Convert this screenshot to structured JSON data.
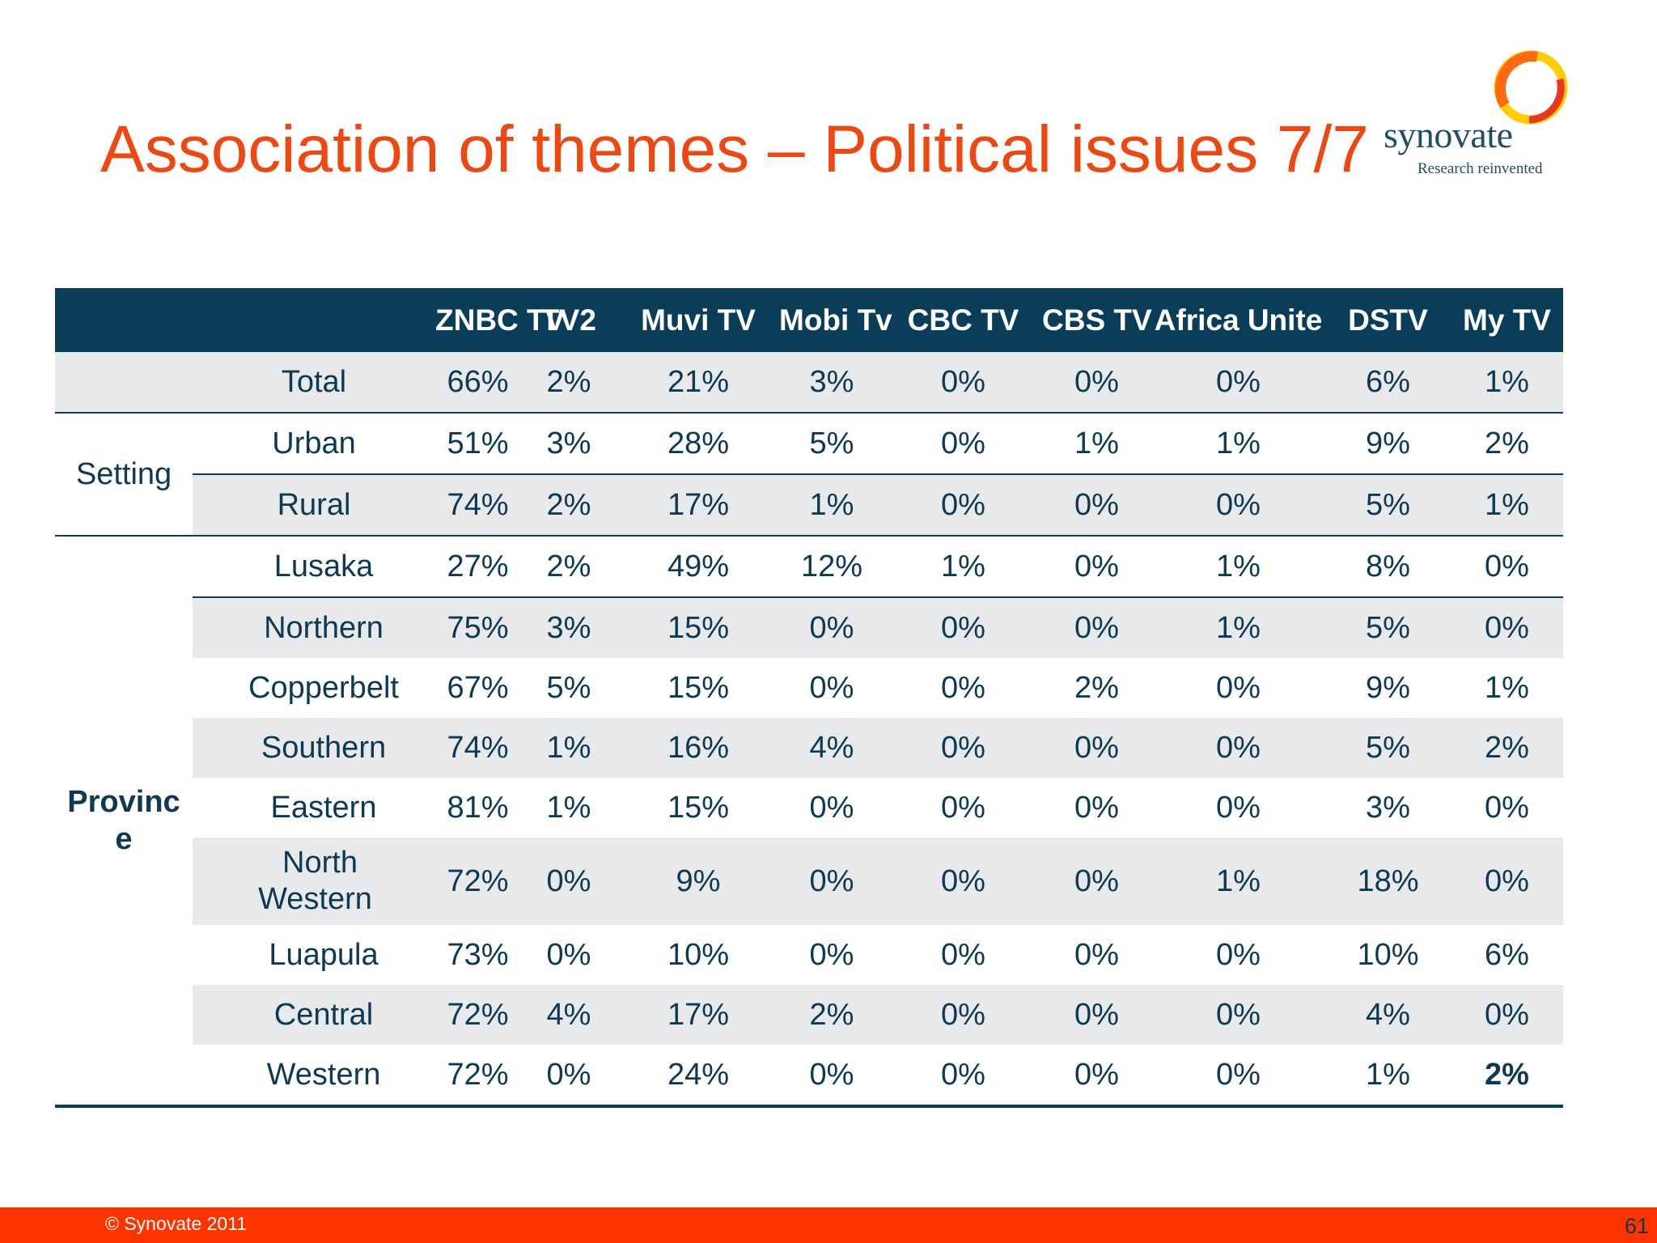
{
  "title": "Association of themes – Political issues 7/7",
  "logo": {
    "word": "synovate",
    "tagline": "Research reinvented"
  },
  "table": {
    "headers": [
      "ZNBC TV",
      "TV2",
      "Muvi TV",
      "Mobi Tv",
      "CBC TV",
      "CBS TV",
      "Africa Unite",
      "DSTV",
      "My TV"
    ],
    "groups": {
      "setting": "Setting",
      "province_line1": "Provinc",
      "province_line2": "e"
    },
    "rows": [
      {
        "label": "Total",
        "values": [
          "66%",
          "2%",
          "21%",
          "3%",
          "0%",
          "0%",
          "0%",
          "6%",
          "1%"
        ]
      },
      {
        "label": "Urban",
        "values": [
          "51%",
          "3%",
          "28%",
          "5%",
          "0%",
          "1%",
          "1%",
          "9%",
          "2%"
        ]
      },
      {
        "label": "Rural",
        "values": [
          "74%",
          "2%",
          "17%",
          "1%",
          "0%",
          "0%",
          "0%",
          "5%",
          "1%"
        ]
      },
      {
        "label": "Lusaka",
        "values": [
          "27%",
          "2%",
          "49%",
          "12%",
          "1%",
          "0%",
          "1%",
          "8%",
          "0%"
        ]
      },
      {
        "label": "Northern",
        "values": [
          "75%",
          "3%",
          "15%",
          "0%",
          "0%",
          "0%",
          "1%",
          "5%",
          "0%"
        ]
      },
      {
        "label": "Copperbelt",
        "values": [
          "67%",
          "5%",
          "15%",
          "0%",
          "0%",
          "2%",
          "0%",
          "9%",
          "1%"
        ]
      },
      {
        "label": "Southern",
        "values": [
          "74%",
          "1%",
          "16%",
          "4%",
          "0%",
          "0%",
          "0%",
          "5%",
          "2%"
        ]
      },
      {
        "label": "Eastern",
        "values": [
          "81%",
          "1%",
          "15%",
          "0%",
          "0%",
          "0%",
          "0%",
          "3%",
          "0%"
        ]
      },
      {
        "label_line1": "North",
        "label_line2": "Western",
        "values": [
          "72%",
          "0%",
          "9%",
          "0%",
          "0%",
          "0%",
          "1%",
          "18%",
          "0%"
        ]
      },
      {
        "label": "Luapula",
        "values": [
          "73%",
          "0%",
          "10%",
          "0%",
          "0%",
          "0%",
          "0%",
          "10%",
          "6%"
        ]
      },
      {
        "label": "Central",
        "values": [
          "72%",
          "4%",
          "17%",
          "2%",
          "0%",
          "0%",
          "0%",
          "4%",
          "0%"
        ]
      },
      {
        "label": "Western",
        "values": [
          "72%",
          "0%",
          "24%",
          "0%",
          "0%",
          "0%",
          "0%",
          "1%",
          "2%"
        ]
      }
    ]
  },
  "footer": {
    "copyright": "© Synovate 2011",
    "page": "61"
  },
  "colors": {
    "title": "#f0460f",
    "header_bg": "#0a3d58",
    "text": "#0d3a52",
    "shade": "#e8e9ea",
    "zero": "#d6d8d9",
    "footer": "#ff3300"
  }
}
